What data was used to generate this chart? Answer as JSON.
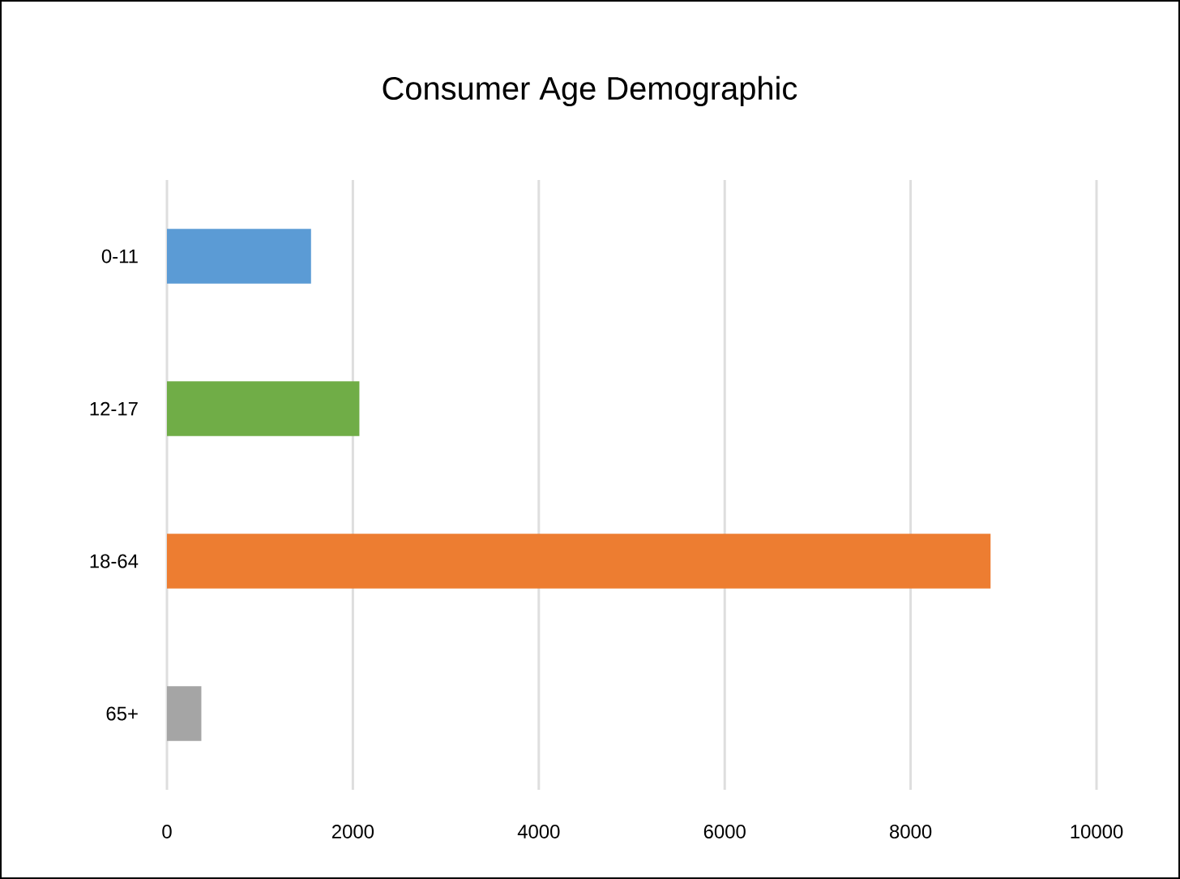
{
  "chart_data": {
    "type": "bar",
    "orientation": "horizontal",
    "title": "Consumer Age Demographic",
    "categories": [
      "0-11",
      "12-17",
      "18-64",
      "65+"
    ],
    "values": [
      1550,
      2070,
      8860,
      370
    ],
    "colors": [
      "#5b9bd5",
      "#70ad47",
      "#ed7d31",
      "#a5a5a5"
    ],
    "xlim": [
      0,
      10000
    ],
    "xticks": [
      0,
      2000,
      4000,
      6000,
      8000,
      10000
    ],
    "grid": "x"
  }
}
